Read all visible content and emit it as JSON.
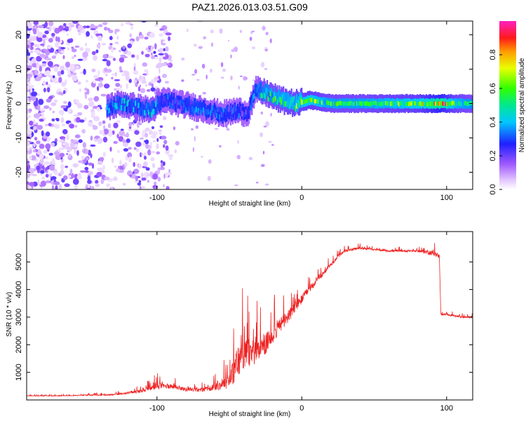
{
  "title": "PAZ1.2026.013.03.51.G09",
  "chart_data": [
    {
      "type": "heatmap",
      "xlabel": "Height of straight line (km)",
      "ylabel": "Frequency (Hz)",
      "xlim": [
        -190,
        118
      ],
      "ylim": [
        -25,
        24
      ],
      "xticks": [
        -100,
        0,
        100
      ],
      "yticks": [
        -20,
        -10,
        0,
        10,
        20
      ],
      "colorbar": {
        "label": "Normalized spectral amplitude",
        "range": [
          0,
          1
        ],
        "ticks": [
          0.0,
          0.2,
          0.4,
          0.6,
          0.8
        ],
        "tick_labels": [
          "0.0",
          "0.2",
          "0.4",
          "0.6",
          "0.8"
        ]
      },
      "ridge": {
        "x": [
          -135,
          -125,
          -115,
          -105,
          -95,
          -85,
          -75,
          -65,
          -55,
          -45,
          -38,
          -32,
          -25,
          -15,
          -5,
          5,
          20,
          40,
          60,
          80,
          95,
          105,
          118
        ],
        "y": [
          -1,
          0,
          -1,
          -2,
          1,
          0,
          -1,
          -2,
          -3,
          -2,
          -3,
          4,
          3,
          1,
          0,
          1,
          0,
          0,
          0,
          0,
          0,
          0,
          0
        ],
        "amplitude": [
          0.35,
          0.4,
          0.35,
          0.4,
          0.3,
          0.3,
          0.35,
          0.3,
          0.3,
          0.3,
          0.25,
          0.35,
          0.5,
          0.55,
          0.6,
          0.65,
          0.55,
          0.55,
          0.6,
          0.65,
          0.9,
          0.6,
          0.5
        ]
      }
    },
    {
      "type": "line",
      "xlabel": "Height of straight line (km)",
      "ylabel": "SNR (10 * v/v)",
      "xlim": [
        -190,
        118
      ],
      "ylim": [
        0,
        6100
      ],
      "xticks": [
        -100,
        0,
        100
      ],
      "yticks": [
        1000,
        2000,
        3000,
        4000,
        5000
      ],
      "series": [
        {
          "name": "SNR",
          "color": "#ee2222",
          "x": [
            -190,
            -170,
            -150,
            -130,
            -110,
            -100,
            -90,
            -80,
            -70,
            -60,
            -50,
            -45,
            -40,
            -35,
            -30,
            -25,
            -20,
            -15,
            -10,
            -5,
            0,
            5,
            10,
            15,
            20,
            25,
            30,
            40,
            50,
            60,
            70,
            80,
            88,
            92,
            95,
            96,
            100,
            110,
            118
          ],
          "y": [
            150,
            150,
            170,
            190,
            320,
            500,
            500,
            380,
            350,
            450,
            700,
            1300,
            1700,
            1600,
            1800,
            2000,
            2400,
            2700,
            3000,
            3300,
            3650,
            4000,
            4300,
            4600,
            4900,
            5200,
            5400,
            5500,
            5450,
            5400,
            5400,
            5400,
            5350,
            5300,
            5200,
            3100,
            3100,
            3000,
            3000
          ],
          "spread": [
            60,
            60,
            70,
            100,
            250,
            500,
            400,
            300,
            300,
            500,
            1200,
            2800,
            2500,
            2000,
            1800,
            1700,
            1500,
            1300,
            1100,
            900,
            700,
            600,
            500,
            400,
            300,
            250,
            200,
            180,
            150,
            150,
            150,
            150,
            400,
            400,
            300,
            150,
            150,
            150,
            150
          ]
        }
      ]
    }
  ]
}
